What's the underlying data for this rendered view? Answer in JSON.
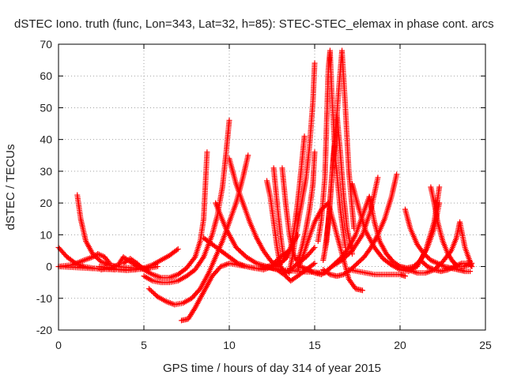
{
  "chart_data": {
    "type": "scatter",
    "title": "dSTEC Iono. truth (func, Lon=343, Lat=32, h=85): STEC-STEC_elemax in phase cont. arcs",
    "xlabel": "GPS time / hours of day 314 of year 2015",
    "ylabel": "dSTEC  / TECUs",
    "xlim": [
      0,
      25
    ],
    "ylim": [
      -20,
      70
    ],
    "xticks": [
      0,
      5,
      10,
      15,
      20,
      25
    ],
    "yticks": [
      -20,
      -10,
      0,
      10,
      20,
      30,
      40,
      50,
      60,
      70
    ],
    "grid": true,
    "marker": "+",
    "color": "#ff0000",
    "series": [
      {
        "x": [
          0.0,
          1.0,
          2.0,
          3.0,
          4.0,
          5.0,
          5.8
        ],
        "values": [
          0,
          -0.3,
          -0.6,
          -0.8,
          -1.0,
          -0.8,
          0
        ]
      },
      {
        "x": [
          0.0,
          0.5,
          1.0,
          1.5,
          2.0,
          2.5,
          3.0,
          3.3
        ],
        "values": [
          6,
          3,
          1,
          0,
          -0.5,
          -0.8,
          -0.9,
          -1
        ]
      },
      {
        "x": [
          0.0,
          0.8,
          1.5,
          2.0,
          2.3,
          2.7,
          3.0
        ],
        "values": [
          0,
          0.5,
          2,
          3,
          4,
          3,
          1
        ]
      },
      {
        "x": [
          1.1,
          1.3,
          1.6,
          2.0,
          2.5,
          3.0,
          3.5,
          4.0,
          4.5,
          5.0
        ],
        "values": [
          22.5,
          15,
          8,
          4,
          1.5,
          0.5,
          0,
          -0.3,
          -0.5,
          -0.5
        ]
      },
      {
        "x": [
          2.4,
          3.0,
          3.5,
          4.0,
          4.5,
          5.0,
          5.5,
          6.0,
          6.5,
          7.0
        ],
        "values": [
          0,
          -0.5,
          -1,
          -1.2,
          -1,
          -0.5,
          0.5,
          2,
          3.5,
          5.5
        ]
      },
      {
        "x": [
          2.5,
          3.0,
          3.5,
          3.8,
          4.2,
          4.7,
          5.2
        ],
        "values": [
          -1,
          -0.5,
          0.5,
          3,
          1.5,
          0,
          -1
        ]
      },
      {
        "x": [
          3.8,
          4.2,
          4.6,
          5.0,
          5.5,
          6.0,
          6.5,
          7.0,
          7.5,
          8.0,
          8.3,
          8.5,
          8.7
        ],
        "values": [
          1,
          2.5,
          1,
          -1,
          -2.5,
          -3.5,
          -3.5,
          -2.5,
          -0.5,
          3,
          8,
          15,
          36
        ]
      },
      {
        "x": [
          5.0,
          5.5,
          6.0,
          6.5,
          7.0,
          7.5,
          8.0,
          8.5,
          9.0,
          9.3,
          9.6,
          9.8,
          10.0
        ],
        "values": [
          -3,
          -4.5,
          -5,
          -5,
          -4.5,
          -3,
          -1,
          3,
          10,
          16,
          25,
          35,
          46
        ]
      },
      {
        "x": [
          5.3,
          5.8,
          6.3,
          6.8,
          7.3,
          7.8,
          8.3,
          8.8,
          9.2,
          9.6,
          10.0,
          10.4,
          10.8,
          11.1
        ],
        "values": [
          -7,
          -9.5,
          -11,
          -12,
          -11.5,
          -10,
          -7,
          -2,
          3,
          8,
          14,
          20,
          28,
          35
        ]
      },
      {
        "x": [
          7.2,
          7.6,
          8.0,
          8.5,
          9.0,
          9.5,
          10.0,
          10.5,
          11.0,
          11.5,
          12.0,
          12.5,
          13.0
        ],
        "values": [
          -17,
          -16.5,
          -13,
          -8,
          -3,
          0,
          1,
          0.5,
          0,
          -0.5,
          -1,
          0,
          2
        ]
      },
      {
        "x": [
          8.5,
          9.0,
          9.5,
          10.0,
          10.5,
          11.0,
          11.5,
          12.0,
          12.5,
          13.0,
          13.5
        ],
        "values": [
          9,
          7,
          5,
          3,
          1,
          0,
          -0.5,
          -0.5,
          0.5,
          3,
          5
        ]
      },
      {
        "x": [
          10.0,
          10.4,
          10.8,
          11.2,
          11.6,
          12.0,
          12.4,
          12.8,
          13.2,
          13.6,
          14.0
        ],
        "values": [
          34,
          26,
          20,
          14,
          9,
          5,
          2,
          0,
          2,
          6,
          10
        ]
      },
      {
        "x": [
          9.2,
          9.8,
          10.4,
          11.0,
          11.6,
          12.2,
          12.8,
          13.2,
          13.6,
          14.0,
          14.5,
          15.0
        ],
        "values": [
          20,
          12,
          6,
          3,
          1,
          0,
          -1,
          -2.5,
          -4.5,
          -3,
          -1,
          1
        ]
      },
      {
        "x": [
          12.2,
          12.4,
          12.6,
          12.8,
          13.0,
          13.3,
          13.6,
          14.0,
          14.5,
          15.0
        ],
        "values": [
          27,
          22,
          14,
          6,
          0,
          -2,
          -1,
          1,
          3,
          6
        ]
      },
      {
        "x": [
          12.6,
          12.8,
          13.0,
          13.2,
          13.4,
          13.6,
          13.8,
          14.0,
          14.2,
          14.4
        ],
        "values": [
          31,
          20,
          10,
          2,
          3,
          6,
          12,
          20,
          30,
          41
        ]
      },
      {
        "x": [
          13.1,
          13.3,
          13.5,
          13.7,
          13.9,
          14.1,
          14.3,
          14.5,
          14.7,
          14.9,
          15.0
        ],
        "values": [
          31,
          20,
          11,
          5,
          2,
          3,
          7,
          12,
          18,
          26,
          36
        ]
      },
      {
        "x": [
          13.5,
          13.7,
          13.9,
          14.1,
          14.3,
          14.5,
          14.7,
          14.9,
          15.0
        ],
        "values": [
          -2,
          3,
          10,
          16,
          22,
          28,
          38,
          52,
          64
        ]
      },
      {
        "x": [
          14.0,
          14.3,
          14.6,
          15.0,
          15.4,
          15.8,
          16.2,
          16.6,
          17.0,
          17.4,
          17.8
        ],
        "values": [
          -1,
          3,
          8,
          14,
          18,
          20,
          12,
          4,
          -4,
          -7,
          -7.5
        ]
      },
      {
        "x": [
          15.2,
          15.4,
          15.6,
          15.7,
          15.8,
          15.9,
          16.0,
          16.2,
          16.5,
          16.8
        ],
        "values": [
          8,
          15,
          28,
          45,
          62,
          68,
          55,
          35,
          18,
          6
        ]
      },
      {
        "x": [
          15.6,
          15.8,
          16.0,
          16.2,
          16.4,
          16.6,
          16.8,
          17.0,
          17.3
        ],
        "values": [
          5,
          14,
          28,
          40,
          55,
          68,
          50,
          30,
          12
        ]
      },
      {
        "x": [
          15.5,
          15.7,
          15.9,
          16.1,
          16.3,
          16.5,
          16.7,
          16.9,
          17.2
        ],
        "values": [
          2,
          8,
          20,
          35,
          48,
          36,
          22,
          12,
          4
        ]
      },
      {
        "x": [
          12.0,
          13.0,
          14.0,
          15.0,
          15.6,
          16.0,
          16.6,
          17.2,
          17.8,
          18.3,
          18.7
        ],
        "values": [
          0,
          -1,
          -1.5,
          -1.8,
          -2,
          0,
          2,
          5,
          10,
          18,
          28
        ]
      },
      {
        "x": [
          14.2,
          14.6,
          15.0,
          15.4,
          15.8,
          16.2,
          16.6,
          17.0,
          17.4,
          17.8,
          18.2
        ],
        "values": [
          0,
          -1,
          -2,
          -2.5,
          -1,
          1,
          3,
          6,
          10,
          16,
          22
        ]
      },
      {
        "x": [
          15.5,
          15.9,
          16.3,
          16.7,
          17.1,
          17.5,
          17.9,
          18.3,
          18.7,
          19.1,
          19.5,
          19.8
        ],
        "values": [
          -1,
          -2.5,
          -3,
          -2.5,
          -1,
          1,
          3,
          6,
          10,
          15,
          22,
          29
        ]
      },
      {
        "x": [
          17.2,
          17.6,
          18.0,
          18.5,
          19.0,
          19.5,
          20.0,
          20.5,
          21.0,
          21.5,
          22.0,
          22.3
        ],
        "values": [
          26,
          18,
          11,
          6,
          2.5,
          0.5,
          -1,
          -1.5,
          0,
          5,
          14,
          25
        ]
      },
      {
        "x": [
          18.2,
          18.5,
          18.8,
          19.2,
          19.6,
          20.0,
          20.4,
          20.8,
          21.2,
          21.6,
          22.0,
          22.3
        ],
        "values": [
          22,
          14,
          8,
          4,
          1.5,
          0,
          -0.5,
          0,
          2,
          6,
          12,
          20
        ]
      },
      {
        "x": [
          17.0,
          17.5,
          18.0,
          18.5,
          19.0,
          19.5,
          20.0,
          20.3
        ],
        "values": [
          -1,
          -1.5,
          -2,
          -2.5,
          -2.5,
          -2.5,
          -2.5,
          -3
        ]
      },
      {
        "x": [
          20.3,
          20.6,
          21.0,
          21.4,
          21.8,
          22.2,
          22.6,
          23.0,
          23.4,
          23.8,
          24.1
        ],
        "values": [
          18,
          12,
          7,
          4,
          2,
          1,
          0,
          -0.5,
          -1,
          -1.5,
          -1.5
        ]
      },
      {
        "x": [
          21.8,
          22.0,
          22.2,
          22.5,
          22.8,
          23.1,
          23.4,
          23.7,
          24.0,
          24.2
        ],
        "values": [
          25,
          20,
          14,
          8,
          4,
          1.5,
          0,
          0,
          0.5,
          1
        ]
      },
      {
        "x": [
          20.0,
          20.5,
          21.0,
          21.5,
          22.0,
          22.5,
          23.0,
          23.3,
          23.5,
          23.8,
          24.2
        ],
        "values": [
          0,
          -1,
          -2,
          -2,
          -1,
          1.5,
          5,
          9,
          14,
          6,
          0
        ]
      },
      {
        "x": [
          21.2,
          21.6,
          22.0,
          22.4,
          22.8,
          23.2,
          23.6,
          24.0,
          24.2
        ],
        "values": [
          2,
          0,
          -1,
          -1.5,
          -1,
          0,
          1,
          1,
          0
        ]
      }
    ]
  }
}
